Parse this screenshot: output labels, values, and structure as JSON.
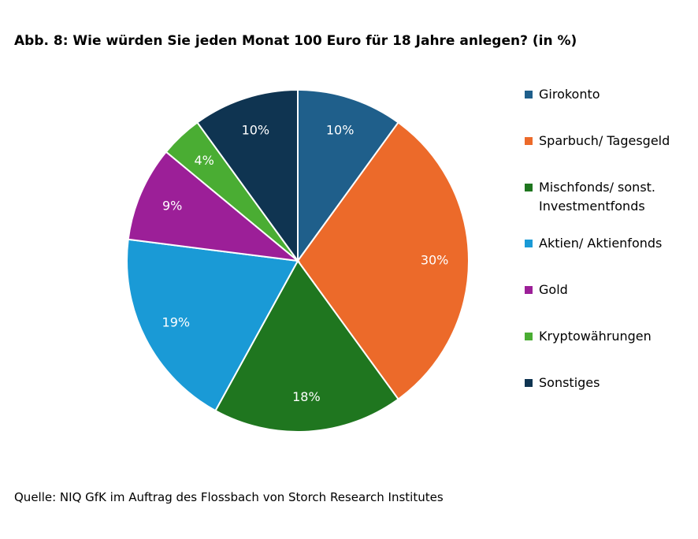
{
  "chart_data": {
    "type": "pie",
    "title": "Abb. 8: Wie würden Sie jeden Monat 100 Euro für 18 Jahre anlegen? (in %)",
    "source": "Quelle: NIQ GfK im Auftrag des Flossbach von Storch Research Institutes",
    "categories": [
      "Girokonto",
      "Sparbuch/ Tagesgeld",
      "Mischfonds/ sonst. Investmentfonds",
      "Aktien/ Aktienfonds",
      "Gold",
      "Kryptowährungen",
      "Sonstiges"
    ],
    "values": [
      10,
      30,
      18,
      19,
      9,
      4,
      10
    ],
    "value_labels": [
      "10%",
      "30%",
      "18%",
      "19%",
      "9%",
      "4%",
      "10%"
    ],
    "colors": [
      "#1f5f8b",
      "#ec6a2a",
      "#1f761f",
      "#1a9ad6",
      "#9c1f98",
      "#4aad33",
      "#0f3451"
    ],
    "legend": "right"
  }
}
